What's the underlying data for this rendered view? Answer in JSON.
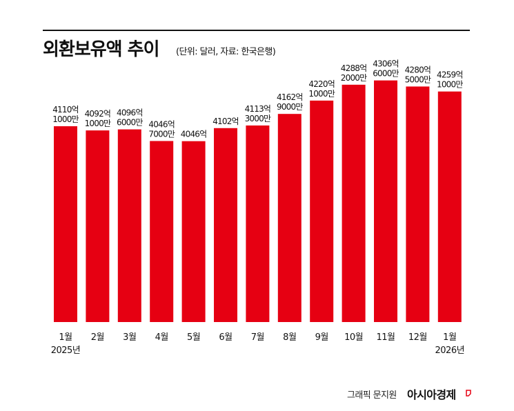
{
  "chart_data": {
    "type": "bar",
    "title": "외환보유액 추이",
    "subtitle": "(단위: 달러, 자료: 한국은행)",
    "categories": [
      "1월",
      "2월",
      "3월",
      "4월",
      "5월",
      "6월",
      "7월",
      "8월",
      "9월",
      "10월",
      "11월",
      "12월",
      "1월"
    ],
    "year_labels": [
      "2025년",
      "",
      "",
      "",
      "",
      "",
      "",
      "",
      "",
      "",
      "",
      "",
      "2026년"
    ],
    "values": [
      4110.1,
      4092.1,
      4096.6,
      4046.7,
      4046,
      4102,
      4113.3,
      4162.9,
      4220.1,
      4288.2,
      4306.6,
      4280.5,
      4259.1
    ],
    "value_unit": "억 달러",
    "data_labels": [
      [
        "4110억",
        "1000만"
      ],
      [
        "4092억",
        "1000만"
      ],
      [
        "4096억",
        "6000만"
      ],
      [
        "4046억",
        "7000만"
      ],
      [
        "4046억",
        ""
      ],
      [
        "4102억",
        ""
      ],
      [
        "4113억",
        "3000만"
      ],
      [
        "4162억",
        "9000만"
      ],
      [
        "4220억",
        "1000만"
      ],
      [
        "4288억",
        "2000만"
      ],
      [
        "4306억",
        "6000만"
      ],
      [
        "4280억",
        "5000만"
      ],
      [
        "4259억",
        "1000만"
      ]
    ],
    "bar_color": "#e60012",
    "grid": false,
    "legend": "none"
  },
  "credit": {
    "text": "그래픽 문지원",
    "brand": "아시아경제"
  }
}
